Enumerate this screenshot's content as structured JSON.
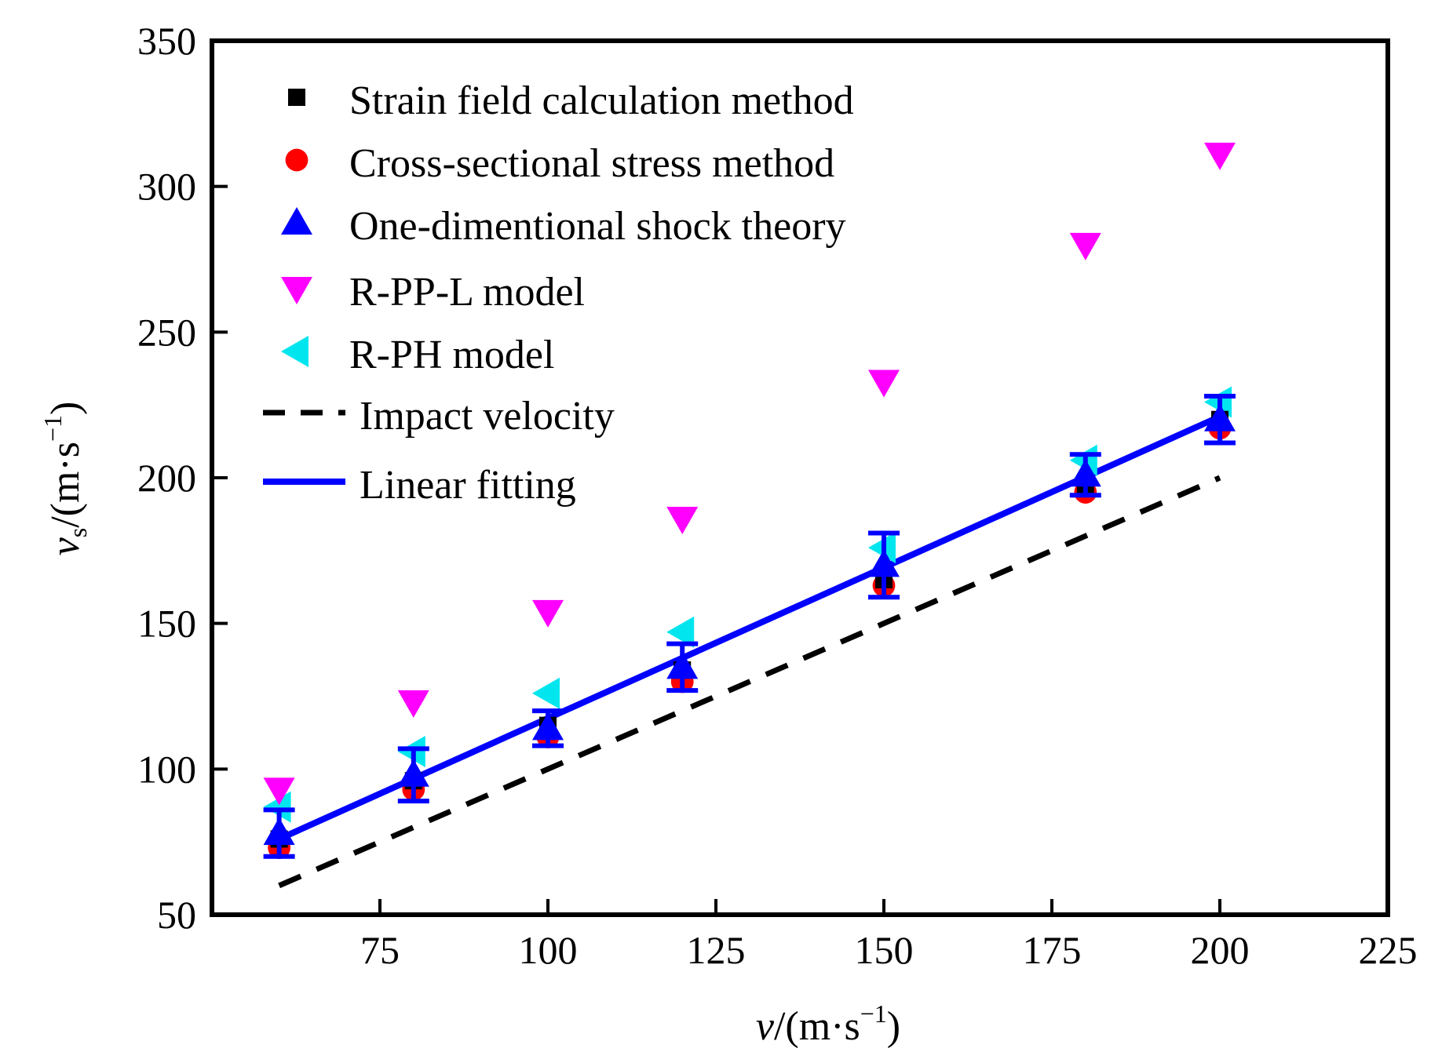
{
  "chart_data": {
    "type": "scatter",
    "xlabel": {
      "var": "v",
      "unit_prefix": "/(m·s",
      "sup": "−1",
      "close": ")"
    },
    "ylabel": {
      "var": "v",
      "sub": "s",
      "unit_prefix": "/(m·s",
      "sup": "−1",
      "close": ")"
    },
    "xlim": [
      50,
      225
    ],
    "ylim": [
      50,
      350
    ],
    "xticks": [
      "75",
      "100",
      "125",
      "150",
      "175",
      "200",
      "225"
    ],
    "yticks": [
      "50",
      "100",
      "150",
      "200",
      "250",
      "300",
      "350"
    ],
    "legend_position": "top-left",
    "x": [
      60,
      80,
      100,
      120,
      150,
      180,
      200
    ],
    "series": [
      {
        "name": "Strain field calculation method",
        "marker": "square",
        "color": "#000000",
        "values": [
          76,
          96,
          115,
          134,
          165,
          197,
          220
        ]
      },
      {
        "name": "Cross-sectional stress method",
        "marker": "circle",
        "color": "#ff0000",
        "values": [
          73,
          93,
          111,
          130,
          163,
          195,
          217
        ]
      },
      {
        "name": "One-dimentional shock theory",
        "marker": "triangle-up",
        "color": "#0000ff",
        "values": [
          78,
          98,
          114,
          135,
          170,
          201,
          220
        ],
        "error": [
          8,
          9,
          6,
          8,
          11,
          7,
          8
        ]
      },
      {
        "name": "R-PP-L model",
        "marker": "triangle-down",
        "color": "#ff00ff",
        "values": [
          93,
          123,
          154,
          186,
          233,
          280,
          311
        ]
      },
      {
        "name": "R-PH model",
        "marker": "triangle-left",
        "color": "#00e5ee",
        "values": [
          87,
          106,
          126,
          147,
          176,
          206,
          226
        ]
      }
    ],
    "lines": [
      {
        "name": "Impact velocity",
        "style": "dashed",
        "color": "#000000",
        "x": [
          60,
          200
        ],
        "y": [
          60,
          200
        ]
      },
      {
        "name": "Linear fitting",
        "style": "solid",
        "color": "#0000ff",
        "x": [
          60,
          200
        ],
        "y": [
          76,
          221
        ]
      }
    ]
  }
}
